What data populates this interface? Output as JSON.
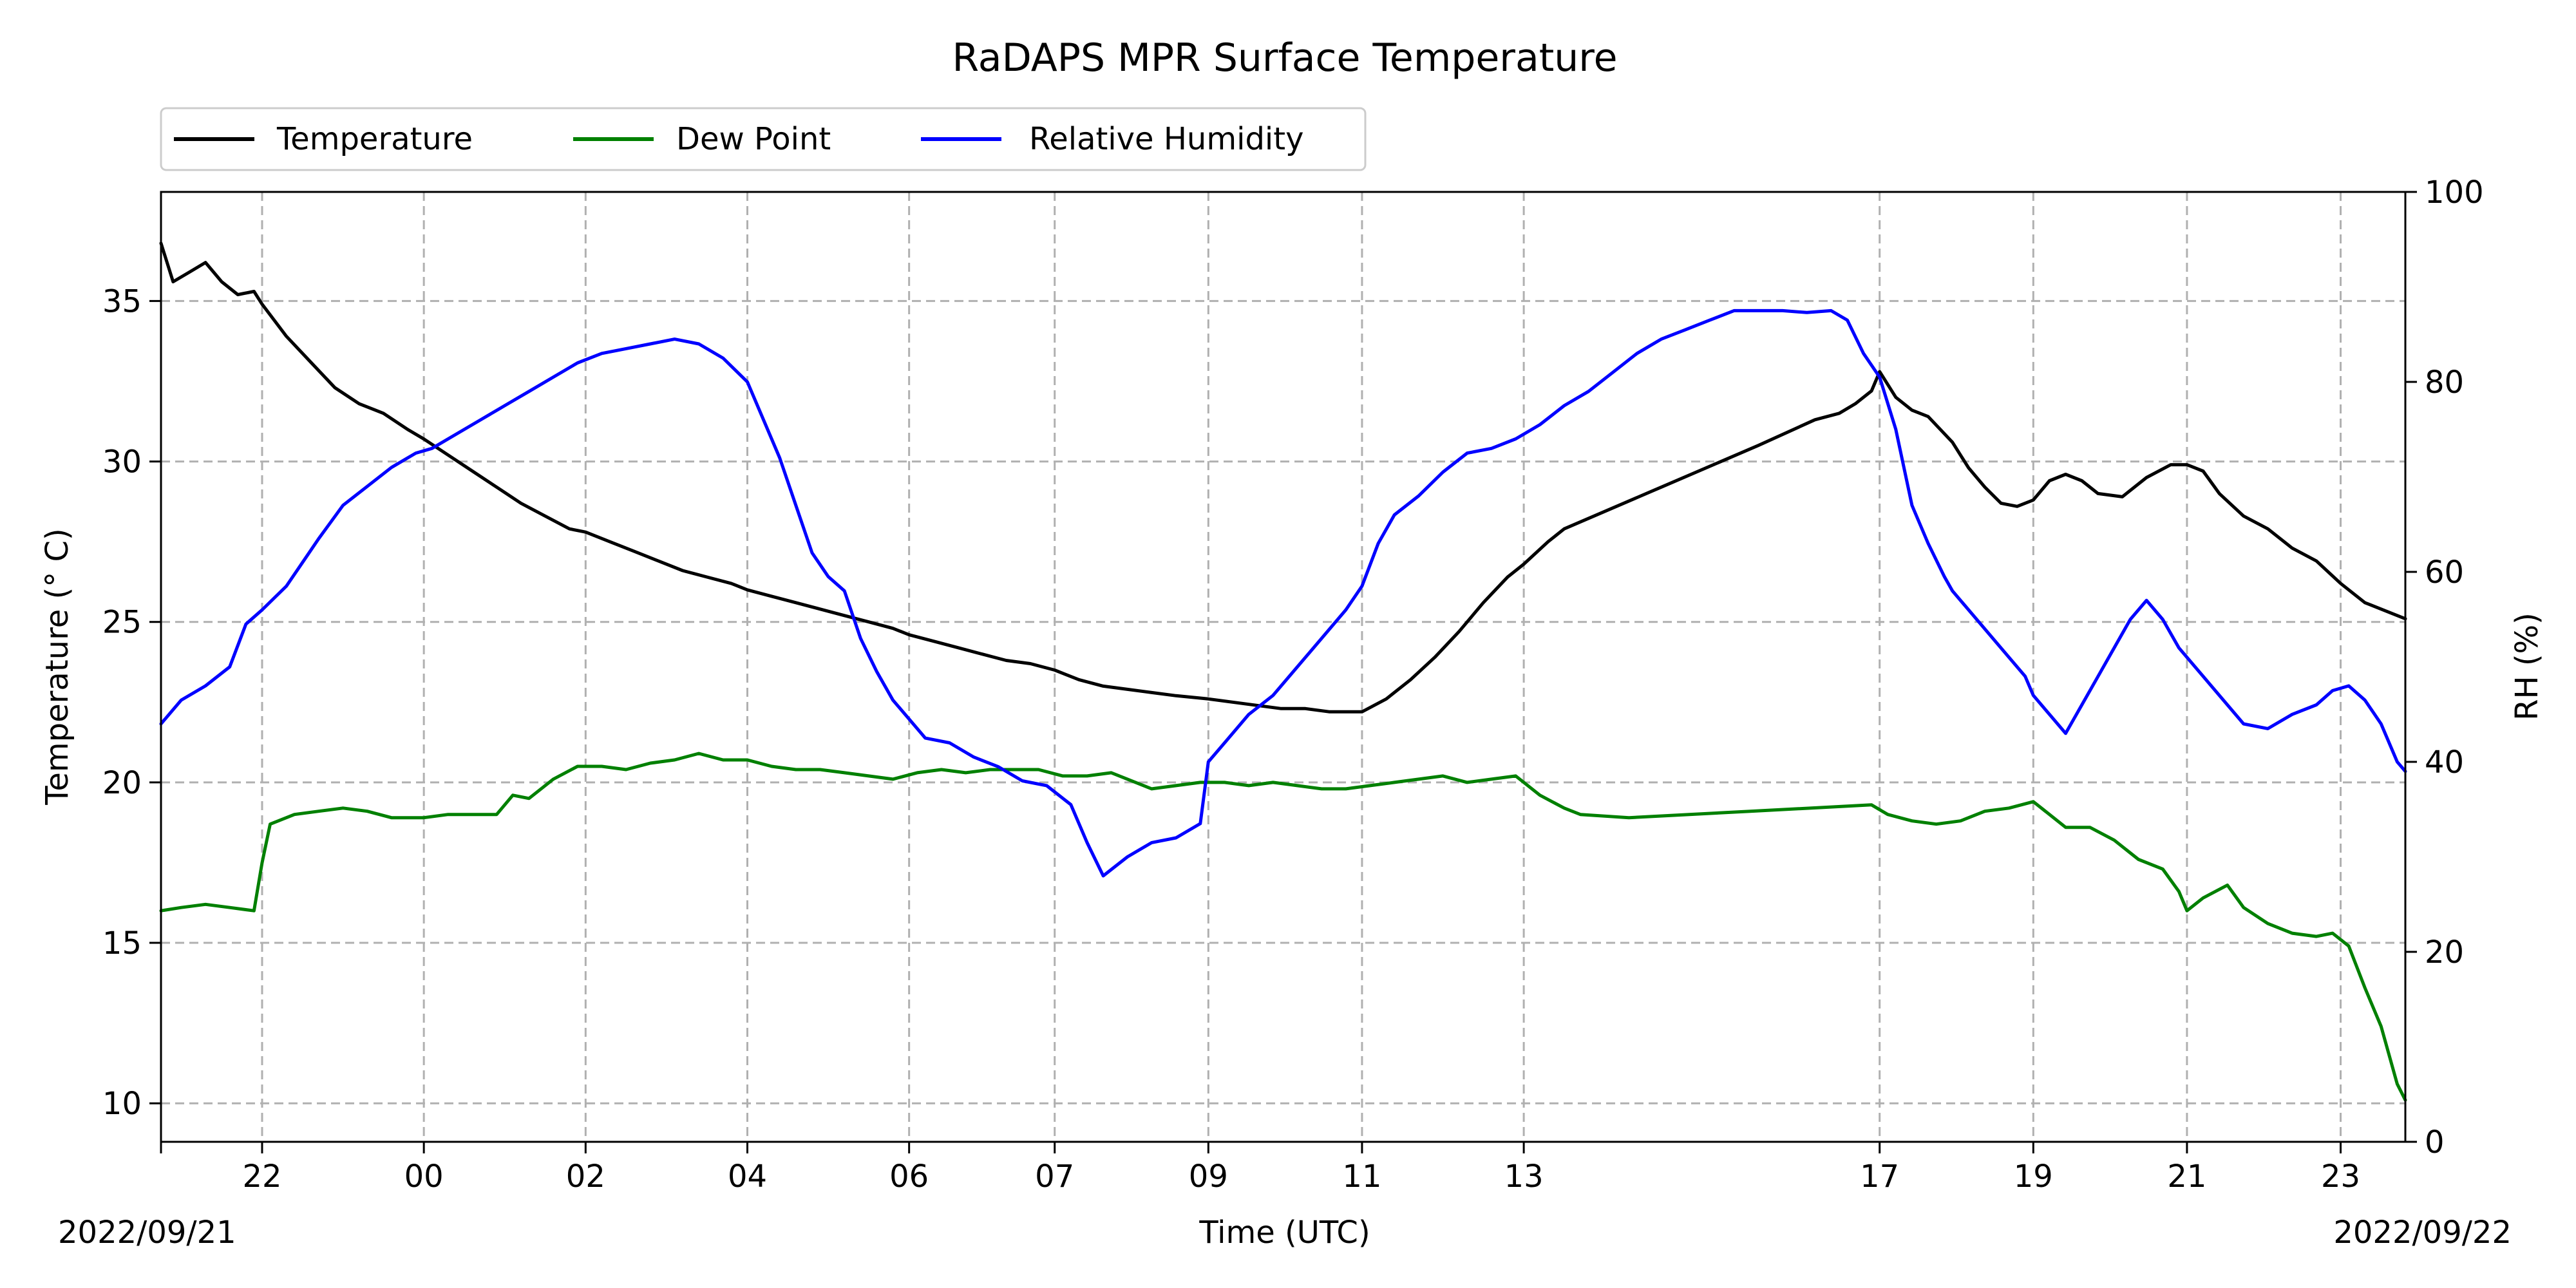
{
  "chart_data": {
    "type": "line",
    "title": "RaDAPS MPR Surface Temperature",
    "xlabel": "Time (UTC)",
    "ylabel_left": "Temperature ($^\\circ$C)",
    "ylabel_left_display": "Temperature (° C)",
    "ylabel_right": "RH (%)",
    "start_date_label": "2022/09/21",
    "end_date_label": "2022/09/22",
    "x_ticks": [
      {
        "t": 22.0,
        "label": "22"
      },
      {
        "t": 24.0,
        "label": "00"
      },
      {
        "t": 26.0,
        "label": "02"
      },
      {
        "t": 28.0,
        "label": "04"
      },
      {
        "t": 30.0,
        "label": "06"
      },
      {
        "t": 31.8,
        "label": "07"
      },
      {
        "t": 33.7,
        "label": "09"
      },
      {
        "t": 35.6,
        "label": "11"
      },
      {
        "t": 37.6,
        "label": "13"
      },
      {
        "t": 42.0,
        "label": "17"
      },
      {
        "t": 43.9,
        "label": "19"
      },
      {
        "t": 45.8,
        "label": "21"
      },
      {
        "t": 47.7,
        "label": "23"
      }
    ],
    "xlim": [
      20.75,
      48.5
    ],
    "ylim_left": [
      8.8,
      38.4
    ],
    "ylim_right": [
      0,
      100
    ],
    "left_ticks": [
      10,
      15,
      20,
      25,
      30,
      35
    ],
    "right_ticks": [
      0,
      20,
      40,
      60,
      80,
      100
    ],
    "grid": true,
    "legend_position": "top-left outside",
    "series": [
      {
        "name": "Temperature",
        "color": "#000000",
        "axis": "left",
        "points": [
          [
            20.75,
            36.8
          ],
          [
            20.9,
            35.6
          ],
          [
            21.1,
            35.9
          ],
          [
            21.3,
            36.2
          ],
          [
            21.5,
            35.6
          ],
          [
            21.7,
            35.2
          ],
          [
            21.9,
            35.3
          ],
          [
            22.0,
            34.9
          ],
          [
            22.3,
            33.9
          ],
          [
            22.6,
            33.1
          ],
          [
            22.9,
            32.3
          ],
          [
            23.2,
            31.8
          ],
          [
            23.5,
            31.5
          ],
          [
            23.8,
            31.0
          ],
          [
            24.0,
            30.7
          ],
          [
            24.3,
            30.2
          ],
          [
            24.6,
            29.7
          ],
          [
            24.9,
            29.2
          ],
          [
            25.2,
            28.7
          ],
          [
            25.5,
            28.3
          ],
          [
            25.8,
            27.9
          ],
          [
            26.0,
            27.8
          ],
          [
            26.3,
            27.5
          ],
          [
            26.6,
            27.2
          ],
          [
            26.9,
            26.9
          ],
          [
            27.2,
            26.6
          ],
          [
            27.5,
            26.4
          ],
          [
            27.8,
            26.2
          ],
          [
            28.0,
            26.0
          ],
          [
            28.3,
            25.8
          ],
          [
            28.6,
            25.6
          ],
          [
            28.9,
            25.4
          ],
          [
            29.2,
            25.2
          ],
          [
            29.5,
            25.0
          ],
          [
            29.8,
            24.8
          ],
          [
            30.0,
            24.6
          ],
          [
            30.3,
            24.4
          ],
          [
            30.6,
            24.2
          ],
          [
            30.9,
            24.0
          ],
          [
            31.2,
            23.8
          ],
          [
            31.5,
            23.7
          ],
          [
            31.8,
            23.5
          ],
          [
            32.1,
            23.2
          ],
          [
            32.4,
            23.0
          ],
          [
            32.7,
            22.9
          ],
          [
            33.0,
            22.8
          ],
          [
            33.3,
            22.7
          ],
          [
            33.7,
            22.6
          ],
          [
            34.0,
            22.5
          ],
          [
            34.3,
            22.4
          ],
          [
            34.6,
            22.3
          ],
          [
            34.9,
            22.3
          ],
          [
            35.2,
            22.2
          ],
          [
            35.5,
            22.2
          ],
          [
            35.6,
            22.2
          ],
          [
            35.9,
            22.6
          ],
          [
            36.2,
            23.2
          ],
          [
            36.5,
            23.9
          ],
          [
            36.8,
            24.7
          ],
          [
            37.1,
            25.6
          ],
          [
            37.4,
            26.4
          ],
          [
            37.6,
            26.8
          ],
          [
            37.9,
            27.5
          ],
          [
            38.1,
            27.9
          ],
          [
            39.3,
            29.2
          ],
          [
            40.5,
            30.5
          ],
          [
            41.2,
            31.3
          ],
          [
            41.5,
            31.5
          ],
          [
            41.7,
            31.8
          ],
          [
            41.9,
            32.2
          ],
          [
            42.0,
            32.8
          ],
          [
            42.2,
            32.0
          ],
          [
            42.4,
            31.6
          ],
          [
            42.6,
            31.4
          ],
          [
            42.9,
            30.6
          ],
          [
            43.1,
            29.8
          ],
          [
            43.3,
            29.2
          ],
          [
            43.5,
            28.7
          ],
          [
            43.7,
            28.6
          ],
          [
            43.9,
            28.8
          ],
          [
            44.1,
            29.4
          ],
          [
            44.3,
            29.6
          ],
          [
            44.5,
            29.4
          ],
          [
            44.7,
            29.0
          ],
          [
            45.0,
            28.9
          ],
          [
            45.3,
            29.5
          ],
          [
            45.6,
            29.9
          ],
          [
            45.8,
            29.9
          ],
          [
            46.0,
            29.7
          ],
          [
            46.2,
            29.0
          ],
          [
            46.5,
            28.3
          ],
          [
            46.8,
            27.9
          ],
          [
            47.1,
            27.3
          ],
          [
            47.4,
            26.9
          ],
          [
            47.7,
            26.2
          ],
          [
            48.0,
            25.6
          ],
          [
            48.3,
            25.3
          ],
          [
            48.5,
            25.1
          ]
        ]
      },
      {
        "name": "Dew Point",
        "color": "#008000",
        "axis": "left",
        "points": [
          [
            20.75,
            16.0
          ],
          [
            21.0,
            16.1
          ],
          [
            21.3,
            16.2
          ],
          [
            21.6,
            16.1
          ],
          [
            21.9,
            16.0
          ],
          [
            22.0,
            17.5
          ],
          [
            22.1,
            18.7
          ],
          [
            22.4,
            19.0
          ],
          [
            22.7,
            19.1
          ],
          [
            23.0,
            19.2
          ],
          [
            23.3,
            19.1
          ],
          [
            23.6,
            18.9
          ],
          [
            24.0,
            18.9
          ],
          [
            24.3,
            19.0
          ],
          [
            24.6,
            19.0
          ],
          [
            24.9,
            19.0
          ],
          [
            25.1,
            19.6
          ],
          [
            25.3,
            19.5
          ],
          [
            25.6,
            20.1
          ],
          [
            25.9,
            20.5
          ],
          [
            26.2,
            20.5
          ],
          [
            26.5,
            20.4
          ],
          [
            26.8,
            20.6
          ],
          [
            27.1,
            20.7
          ],
          [
            27.4,
            20.9
          ],
          [
            27.7,
            20.7
          ],
          [
            28.0,
            20.7
          ],
          [
            28.3,
            20.5
          ],
          [
            28.6,
            20.4
          ],
          [
            28.9,
            20.4
          ],
          [
            29.2,
            20.3
          ],
          [
            29.5,
            20.2
          ],
          [
            29.8,
            20.1
          ],
          [
            30.1,
            20.3
          ],
          [
            30.4,
            20.4
          ],
          [
            30.7,
            20.3
          ],
          [
            31.0,
            20.4
          ],
          [
            31.3,
            20.4
          ],
          [
            31.6,
            20.4
          ],
          [
            31.9,
            20.2
          ],
          [
            32.2,
            20.2
          ],
          [
            32.5,
            20.3
          ],
          [
            32.8,
            20.0
          ],
          [
            33.0,
            19.8
          ],
          [
            33.3,
            19.9
          ],
          [
            33.6,
            20.0
          ],
          [
            33.9,
            20.0
          ],
          [
            34.2,
            19.9
          ],
          [
            34.5,
            20.0
          ],
          [
            34.8,
            19.9
          ],
          [
            35.1,
            19.8
          ],
          [
            35.4,
            19.8
          ],
          [
            35.7,
            19.9
          ],
          [
            36.0,
            20.0
          ],
          [
            36.3,
            20.1
          ],
          [
            36.6,
            20.2
          ],
          [
            36.9,
            20.0
          ],
          [
            37.2,
            20.1
          ],
          [
            37.5,
            20.2
          ],
          [
            37.8,
            19.6
          ],
          [
            38.1,
            19.2
          ],
          [
            38.3,
            19.0
          ],
          [
            38.9,
            18.9
          ],
          [
            40.4,
            19.1
          ],
          [
            41.9,
            19.3
          ],
          [
            42.1,
            19.0
          ],
          [
            42.4,
            18.8
          ],
          [
            42.7,
            18.7
          ],
          [
            43.0,
            18.8
          ],
          [
            43.3,
            19.1
          ],
          [
            43.6,
            19.2
          ],
          [
            43.9,
            19.4
          ],
          [
            44.1,
            19.0
          ],
          [
            44.3,
            18.6
          ],
          [
            44.6,
            18.6
          ],
          [
            44.9,
            18.2
          ],
          [
            45.2,
            17.6
          ],
          [
            45.5,
            17.3
          ],
          [
            45.7,
            16.6
          ],
          [
            45.8,
            16.0
          ],
          [
            46.0,
            16.4
          ],
          [
            46.3,
            16.8
          ],
          [
            46.5,
            16.1
          ],
          [
            46.8,
            15.6
          ],
          [
            47.1,
            15.3
          ],
          [
            47.4,
            15.2
          ],
          [
            47.6,
            15.3
          ],
          [
            47.8,
            14.9
          ],
          [
            48.0,
            13.6
          ],
          [
            48.2,
            12.4
          ],
          [
            48.4,
            10.6
          ],
          [
            48.5,
            10.1
          ]
        ]
      },
      {
        "name": "Relative Humidity",
        "color": "#0000ff",
        "axis": "right",
        "points": [
          [
            20.75,
            44.0
          ],
          [
            21.0,
            46.5
          ],
          [
            21.3,
            48.0
          ],
          [
            21.6,
            50.0
          ],
          [
            21.8,
            54.5
          ],
          [
            22.0,
            56.0
          ],
          [
            22.3,
            58.5
          ],
          [
            22.5,
            61.0
          ],
          [
            22.7,
            63.5
          ],
          [
            23.0,
            67.0
          ],
          [
            23.3,
            69.0
          ],
          [
            23.6,
            71.0
          ],
          [
            23.9,
            72.5
          ],
          [
            24.1,
            73.0
          ],
          [
            24.4,
            74.5
          ],
          [
            24.7,
            76.0
          ],
          [
            25.0,
            77.5
          ],
          [
            25.3,
            79.0
          ],
          [
            25.6,
            80.5
          ],
          [
            25.9,
            82.0
          ],
          [
            26.2,
            83.0
          ],
          [
            26.5,
            83.5
          ],
          [
            26.8,
            84.0
          ],
          [
            27.1,
            84.5
          ],
          [
            27.4,
            84.0
          ],
          [
            27.7,
            82.5
          ],
          [
            28.0,
            80.0
          ],
          [
            28.2,
            76.0
          ],
          [
            28.4,
            72.0
          ],
          [
            28.6,
            67.0
          ],
          [
            28.8,
            62.0
          ],
          [
            29.0,
            59.5
          ],
          [
            29.2,
            58.0
          ],
          [
            29.4,
            53.0
          ],
          [
            29.6,
            49.5
          ],
          [
            29.8,
            46.5
          ],
          [
            30.0,
            44.5
          ],
          [
            30.2,
            42.5
          ],
          [
            30.5,
            42.0
          ],
          [
            30.8,
            40.5
          ],
          [
            31.1,
            39.5
          ],
          [
            31.4,
            38.0
          ],
          [
            31.7,
            37.5
          ],
          [
            32.0,
            35.5
          ],
          [
            32.2,
            31.5
          ],
          [
            32.4,
            28.0
          ],
          [
            32.7,
            30.0
          ],
          [
            33.0,
            31.5
          ],
          [
            33.3,
            32.0
          ],
          [
            33.6,
            33.5
          ],
          [
            33.7,
            40.0
          ],
          [
            33.9,
            42.0
          ],
          [
            34.2,
            45.0
          ],
          [
            34.5,
            47.0
          ],
          [
            34.8,
            50.0
          ],
          [
            35.1,
            53.0
          ],
          [
            35.4,
            56.0
          ],
          [
            35.6,
            58.5
          ],
          [
            35.8,
            63.0
          ],
          [
            36.0,
            66.0
          ],
          [
            36.3,
            68.0
          ],
          [
            36.6,
            70.5
          ],
          [
            36.9,
            72.5
          ],
          [
            37.2,
            73.0
          ],
          [
            37.5,
            74.0
          ],
          [
            37.8,
            75.5
          ],
          [
            38.1,
            77.5
          ],
          [
            38.4,
            79.0
          ],
          [
            38.7,
            81.0
          ],
          [
            39.0,
            83.0
          ],
          [
            39.3,
            84.5
          ],
          [
            39.6,
            85.5
          ],
          [
            39.9,
            86.5
          ],
          [
            40.2,
            87.5
          ],
          [
            40.5,
            87.5
          ],
          [
            40.8,
            87.5
          ],
          [
            41.1,
            87.3
          ],
          [
            41.4,
            87.5
          ],
          [
            41.6,
            86.5
          ],
          [
            41.8,
            83.0
          ],
          [
            42.0,
            80.5
          ],
          [
            42.2,
            75.0
          ],
          [
            42.4,
            67.0
          ],
          [
            42.6,
            63.0
          ],
          [
            42.8,
            59.5
          ],
          [
            42.9,
            58.0
          ],
          [
            43.8,
            49.0
          ],
          [
            43.9,
            47.0
          ],
          [
            44.1,
            45.0
          ],
          [
            44.3,
            43.0
          ],
          [
            44.5,
            46.0
          ],
          [
            44.7,
            49.0
          ],
          [
            44.9,
            52.0
          ],
          [
            45.1,
            55.0
          ],
          [
            45.3,
            57.0
          ],
          [
            45.5,
            55.0
          ],
          [
            45.7,
            52.0
          ],
          [
            45.9,
            50.0
          ],
          [
            46.1,
            48.0
          ],
          [
            46.3,
            46.0
          ],
          [
            46.5,
            44.0
          ],
          [
            46.8,
            43.5
          ],
          [
            47.1,
            45.0
          ],
          [
            47.4,
            46.0
          ],
          [
            47.6,
            47.5
          ],
          [
            47.8,
            48.0
          ],
          [
            48.0,
            46.5
          ],
          [
            48.2,
            44.0
          ],
          [
            48.4,
            40.0
          ],
          [
            48.5,
            39.0
          ]
        ]
      }
    ]
  }
}
